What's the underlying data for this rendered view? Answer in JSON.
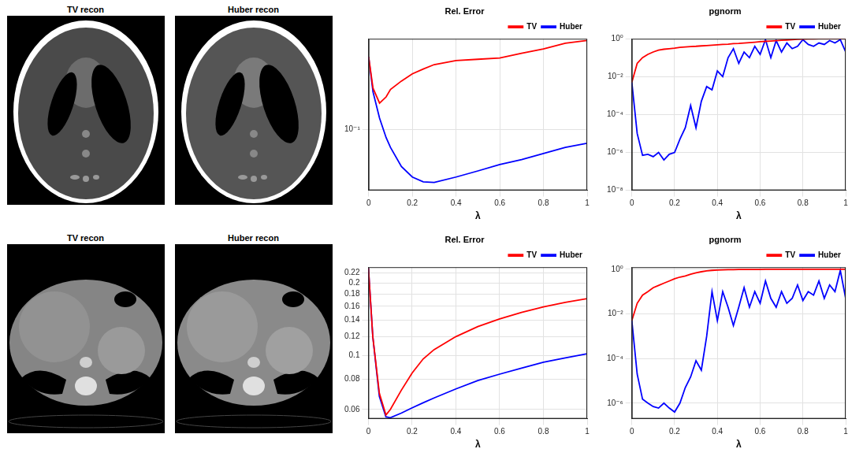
{
  "images": [
    {
      "title": "TV recon"
    },
    {
      "title": "Huber recon"
    },
    {
      "title": "TV recon"
    },
    {
      "title": "Huber recon"
    }
  ],
  "chart_data": [
    {
      "type": "line",
      "title": "Rel. Error",
      "xlabel": "λ",
      "x": [
        0,
        0.02,
        0.05,
        0.08,
        0.1,
        0.15,
        0.2,
        0.25,
        0.3,
        0.4,
        0.5,
        0.6,
        0.7,
        0.8,
        0.9,
        1
      ],
      "xlim": [
        0,
        1
      ],
      "xticks": [
        0,
        0.2,
        0.4,
        0.6,
        0.8,
        1
      ],
      "ylim": [
        0.03,
        0.6
      ],
      "yticks": [
        {
          "value": 0.1,
          "label": "10⁻¹"
        }
      ],
      "log": "y",
      "grid": true,
      "legend": "top",
      "series": [
        {
          "name": "TV",
          "color": "#ff0000",
          "values": [
            0.42,
            0.226,
            0.168,
            0.19,
            0.22,
            0.26,
            0.3,
            0.33,
            0.36,
            0.39,
            0.4,
            0.41,
            0.45,
            0.49,
            0.55,
            0.58
          ]
        },
        {
          "name": "Huber",
          "color": "#0000ff",
          "values": [
            0.42,
            0.21,
            0.125,
            0.085,
            0.07,
            0.048,
            0.039,
            0.0355,
            0.035,
            0.039,
            0.044,
            0.05,
            0.055,
            0.062,
            0.07,
            0.076
          ]
        }
      ]
    },
    {
      "type": "line",
      "title": "pgnorm",
      "xlabel": "λ",
      "x": [
        0,
        0.025,
        0.05,
        0.075,
        0.1,
        0.125,
        0.15,
        0.175,
        0.2,
        0.225,
        0.25,
        0.275,
        0.3,
        0.325,
        0.35,
        0.375,
        0.4,
        0.425,
        0.45,
        0.475,
        0.5,
        0.525,
        0.55,
        0.575,
        0.6,
        0.625,
        0.65,
        0.675,
        0.7,
        0.725,
        0.75,
        0.775,
        0.8,
        0.825,
        0.85,
        0.875,
        0.9,
        0.925,
        0.95,
        0.975,
        1
      ],
      "xlim": [
        0,
        1
      ],
      "xticks": [
        0,
        0.2,
        0.4,
        0.6,
        0.8,
        1
      ],
      "ylim": [
        1e-08,
        1
      ],
      "yticks": [
        {
          "value": 1e-08,
          "label": "10⁻⁸"
        },
        {
          "value": 1e-06,
          "label": "10⁻⁶"
        },
        {
          "value": 0.0001,
          "label": "10⁻⁴"
        },
        {
          "value": 0.01,
          "label": "10⁻²"
        },
        {
          "value": 1,
          "label": "10⁰"
        }
      ],
      "log": "y",
      "grid": true,
      "legend": "top",
      "series": [
        {
          "name": "TV",
          "color": "#ff0000",
          "values": [
            0.005,
            0.05,
            0.1,
            0.15,
            0.2,
            0.25,
            0.28,
            0.3,
            0.32,
            0.35,
            0.37,
            0.39,
            0.4,
            0.42,
            0.44,
            0.46,
            0.48,
            0.5,
            0.52,
            0.55,
            0.57,
            0.6,
            0.63,
            0.66,
            0.7,
            0.73,
            0.76,
            0.8,
            0.83,
            0.86,
            0.9,
            0.93,
            0.96,
            0.98,
            0.99,
            1,
            1,
            1,
            1,
            1,
            1
          ]
        },
        {
          "name": "Huber",
          "color": "#0000ff",
          "values": [
            0.005,
            1e-05,
            7e-07,
            8e-07,
            6e-07,
            1e-06,
            4e-07,
            8e-07,
            1e-06,
            5e-06,
            2e-05,
            0.0003,
            2e-05,
            0.0005,
            0.003,
            0.002,
            0.02,
            0.01,
            0.1,
            0.3,
            0.05,
            0.2,
            0.1,
            0.4,
            0.15,
            0.9,
            0.1,
            0.8,
            0.2,
            0.6,
            0.3,
            0.4,
            0.9,
            0.5,
            0.4,
            0.6,
            0.5,
            0.8,
            0.6,
            0.9,
            0.2
          ]
        }
      ]
    },
    {
      "type": "line",
      "title": "Rel. Error",
      "xlabel": "λ",
      "x": [
        0,
        0.02,
        0.05,
        0.08,
        0.1,
        0.15,
        0.2,
        0.25,
        0.3,
        0.4,
        0.5,
        0.6,
        0.7,
        0.8,
        0.9,
        1
      ],
      "xlim": [
        0,
        1
      ],
      "xticks": [
        0,
        0.2,
        0.4,
        0.6,
        0.8,
        1
      ],
      "ylim": [
        0.055,
        0.232
      ],
      "yticks": [
        0.06,
        0.08,
        0.1,
        0.12,
        0.14,
        0.16,
        0.18,
        0.2,
        0.22
      ],
      "log": "y",
      "grid": true,
      "legend": "top",
      "series": [
        {
          "name": "TV",
          "color": "#ff0000",
          "values": [
            0.23,
            0.12,
            0.07,
            0.057,
            0.06,
            0.072,
            0.085,
            0.097,
            0.106,
            0.12,
            0.132,
            0.142,
            0.151,
            0.159,
            0.166,
            0.172
          ]
        },
        {
          "name": "Huber",
          "color": "#0000ff",
          "values": [
            0.23,
            0.12,
            0.068,
            0.056,
            0.0555,
            0.058,
            0.061,
            0.064,
            0.067,
            0.073,
            0.079,
            0.084,
            0.089,
            0.094,
            0.098,
            0.102
          ]
        }
      ]
    },
    {
      "type": "line",
      "title": "pgnorm",
      "xlabel": "λ",
      "x": [
        0,
        0.025,
        0.05,
        0.075,
        0.1,
        0.125,
        0.15,
        0.175,
        0.2,
        0.225,
        0.25,
        0.275,
        0.3,
        0.325,
        0.35,
        0.375,
        0.4,
        0.425,
        0.45,
        0.475,
        0.5,
        0.525,
        0.55,
        0.575,
        0.6,
        0.625,
        0.65,
        0.675,
        0.7,
        0.725,
        0.75,
        0.775,
        0.8,
        0.825,
        0.85,
        0.875,
        0.9,
        0.925,
        0.95,
        0.975,
        1
      ],
      "xlim": [
        0,
        1
      ],
      "xticks": [
        0,
        0.2,
        0.4,
        0.6,
        0.8,
        1
      ],
      "ylim": [
        2e-07,
        1.25
      ],
      "yticks": [
        {
          "value": 1e-06,
          "label": "10⁻⁶"
        },
        {
          "value": 0.0001,
          "label": "10⁻⁴"
        },
        {
          "value": 0.01,
          "label": "10⁻²"
        },
        {
          "value": 1,
          "label": "10⁰"
        }
      ],
      "log": "y",
      "grid": true,
      "legend": "top",
      "series": [
        {
          "name": "TV",
          "color": "#ff0000",
          "values": [
            0.005,
            0.03,
            0.07,
            0.1,
            0.15,
            0.19,
            0.24,
            0.3,
            0.38,
            0.45,
            0.5,
            0.6,
            0.7,
            0.78,
            0.85,
            0.9,
            0.93,
            0.95,
            0.96,
            0.97,
            0.98,
            0.98,
            0.99,
            0.99,
            0.99,
            1,
            1,
            1,
            1,
            1,
            1,
            1,
            1,
            1,
            1,
            1,
            1,
            1,
            1,
            1,
            1
          ]
        },
        {
          "name": "Huber",
          "color": "#0000ff",
          "values": [
            0.005,
            2e-05,
            1.5e-06,
            1e-06,
            7e-07,
            6e-07,
            1e-06,
            6e-07,
            4e-07,
            1e-06,
            5e-06,
            1.5e-05,
            8e-05,
            3e-05,
            0.001,
            0.1,
            0.005,
            0.1,
            0.02,
            0.003,
            0.02,
            0.15,
            0.02,
            0.1,
            0.03,
            0.3,
            0.05,
            0.02,
            0.1,
            0.03,
            0.05,
            0.2,
            0.04,
            0.1,
            0.07,
            0.3,
            0.05,
            0.2,
            0.1,
            0.9,
            0.05
          ]
        }
      ]
    }
  ]
}
